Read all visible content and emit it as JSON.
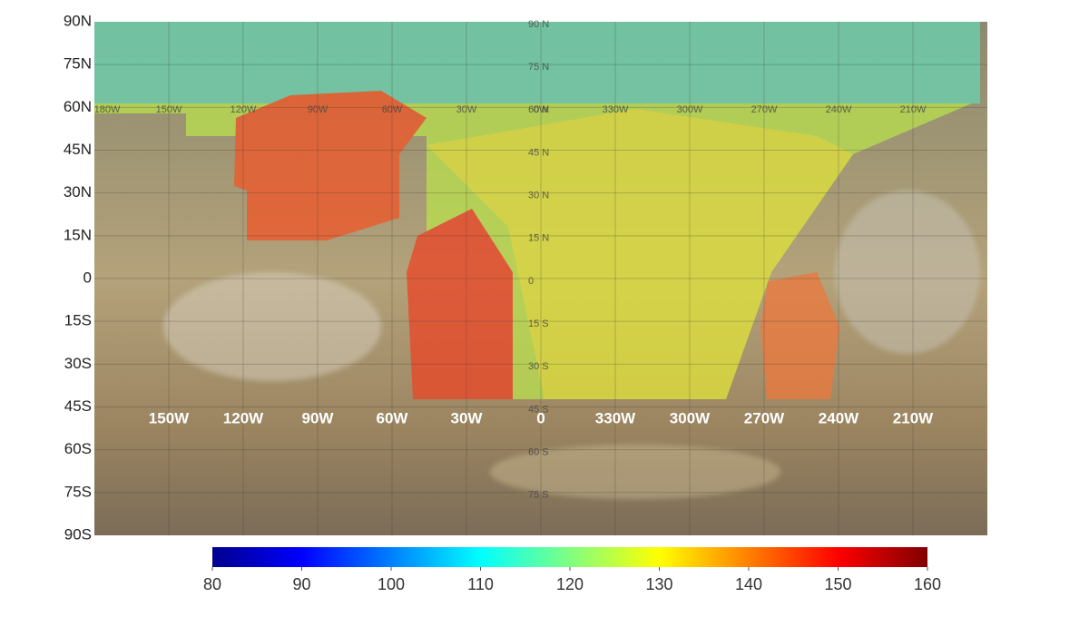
{
  "map": {
    "lat_labels": [
      "90N",
      "75N",
      "60N",
      "45N",
      "30N",
      "15N",
      "0",
      "15S",
      "30S",
      "45S",
      "60S",
      "75S",
      "90S"
    ],
    "lon_labels": [
      "150W",
      "120W",
      "90W",
      "60W",
      "30W",
      "0",
      "330W",
      "300W",
      "270W",
      "240W",
      "210W"
    ],
    "grid_lon_labels": [
      "180W",
      "150W",
      "120W",
      "90W",
      "60W",
      "30W",
      "0W",
      "330W",
      "300W",
      "270W",
      "240W",
      "210W"
    ],
    "grid_lat_labels": [
      "90 N",
      "75 N",
      "60 N",
      "45 N",
      "30 N",
      "15 N",
      "0",
      "15 S",
      "30 S",
      "45 S",
      "60 S",
      "75 S"
    ]
  },
  "colorbar": {
    "range": [
      80,
      160
    ],
    "ticks": [
      80,
      90,
      100,
      110,
      120,
      130,
      140,
      150,
      160
    ]
  }
}
